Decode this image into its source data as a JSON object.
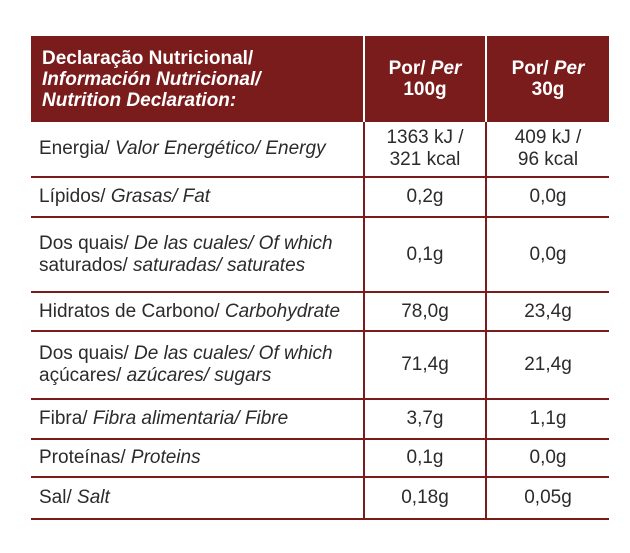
{
  "header": {
    "label_line1": "Declaração Nutricional/",
    "label_line2": "Información Nutricional/",
    "label_line3": "Nutrition Declaration:",
    "col1_normal": "Por/ ",
    "col1_italic": "Per",
    "col1_line2": "100g",
    "col2_normal": "Por/ ",
    "col2_italic": "Per",
    "col2_line2": "30g"
  },
  "colors": {
    "accent": "#7b1c1c"
  },
  "rows": [
    {
      "lines": [
        {
          "normal": "Energia/ ",
          "italic": "Valor Energético/ Energy"
        }
      ],
      "per100": [
        "1363 kJ /",
        "321 kcal"
      ],
      "per30": [
        "409 kJ /",
        "96 kcal"
      ]
    },
    {
      "lines": [
        {
          "normal": "Lípidos/ ",
          "italic": "Grasas/ Fat"
        }
      ],
      "per100": [
        "0,2g"
      ],
      "per30": [
        "0,0g"
      ]
    },
    {
      "lines": [
        {
          "normal": "Dos quais/ ",
          "italic": "De las cuales/ Of which"
        },
        {
          "normal": "saturados/ ",
          "italic": "saturadas/ saturates"
        }
      ],
      "per100": [
        "0,1g"
      ],
      "per30": [
        "0,0g"
      ]
    },
    {
      "lines": [
        {
          "normal": "Hidratos de Carbono/ ",
          "italic": "Carbohydrate"
        }
      ],
      "per100": [
        "78,0g"
      ],
      "per30": [
        "23,4g"
      ]
    },
    {
      "lines": [
        {
          "normal": "Dos quais/ ",
          "italic": "De las cuales/ Of which"
        },
        {
          "normal": "açúcares/ ",
          "italic": "azúcares/ sugars"
        }
      ],
      "per100": [
        "71,4g"
      ],
      "per30": [
        "21,4g"
      ]
    },
    {
      "lines": [
        {
          "normal": "Fibra/ ",
          "italic": "Fibra alimentaria/ Fibre"
        }
      ],
      "per100": [
        "3,7g"
      ],
      "per30": [
        "1,1g"
      ]
    },
    {
      "lines": [
        {
          "normal": "Proteínas/ ",
          "italic": "Proteins"
        }
      ],
      "per100": [
        "0,1g"
      ],
      "per30": [
        "0,0g"
      ]
    },
    {
      "lines": [
        {
          "normal": "Sal/ ",
          "italic": "Salt"
        }
      ],
      "per100": [
        "0,18g"
      ],
      "per30": [
        "0,05g"
      ]
    }
  ]
}
